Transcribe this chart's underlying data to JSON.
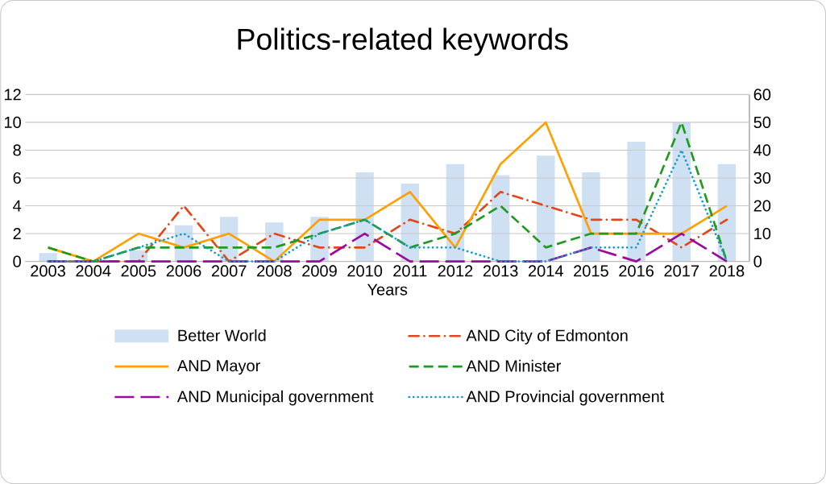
{
  "chart_data": {
    "type": "line",
    "title": "Politics-related keywords",
    "xlabel": "Years",
    "categories": [
      "2003",
      "2004",
      "2005",
      "2006",
      "2007",
      "2008",
      "2009",
      "2010",
      "2011",
      "2012",
      "2013",
      "2014",
      "2015",
      "2016",
      "2017",
      "2018"
    ],
    "series": [
      {
        "name": "Better World",
        "type": "bar",
        "axis": "y2",
        "color": "#cfe0f2",
        "values": [
          3,
          0,
          4,
          13,
          16,
          14,
          16,
          32,
          28,
          35,
          31,
          38,
          32,
          43,
          50,
          35
        ]
      },
      {
        "name": "AND City of Edmonton",
        "color": "#e2461c",
        "line_style": "dashdot",
        "values": [
          0,
          0,
          0,
          4,
          0,
          2,
          1,
          1,
          3,
          2,
          5,
          4,
          3,
          3,
          1,
          3
        ]
      },
      {
        "name": "AND Mayor",
        "color": "#ffa000",
        "line_style": "solid",
        "values": [
          1,
          0,
          2,
          1,
          2,
          0,
          3,
          3,
          5,
          1,
          7,
          10,
          2,
          2,
          2,
          4
        ]
      },
      {
        "name": "AND Minister",
        "color": "#1f9a1f",
        "line_style": "dashed",
        "values": [
          1,
          0,
          1,
          1,
          1,
          1,
          2,
          3,
          1,
          2,
          4,
          1,
          2,
          2,
          10,
          0
        ]
      },
      {
        "name": "AND Municipal government",
        "color": "#9a0c9e",
        "line_style": "longdashed",
        "values": [
          0,
          0,
          0,
          0,
          0,
          0,
          0,
          2,
          0,
          0,
          0,
          0,
          1,
          0,
          2,
          0
        ]
      },
      {
        "name": "AND Provincial government",
        "color": "#129ccf",
        "line_style": "dotted",
        "values": [
          0,
          0,
          1,
          2,
          0,
          0,
          2,
          3,
          1,
          1,
          0,
          0,
          1,
          1,
          8,
          0
        ]
      }
    ],
    "ylim": [
      0,
      12
    ],
    "yticks": [
      0,
      2,
      4,
      6,
      8,
      10,
      12
    ],
    "y2lim": [
      0,
      60
    ],
    "y2ticks": [
      0,
      10,
      20,
      30,
      40,
      50,
      60
    ],
    "grid": "y",
    "legend": "bottom"
  }
}
